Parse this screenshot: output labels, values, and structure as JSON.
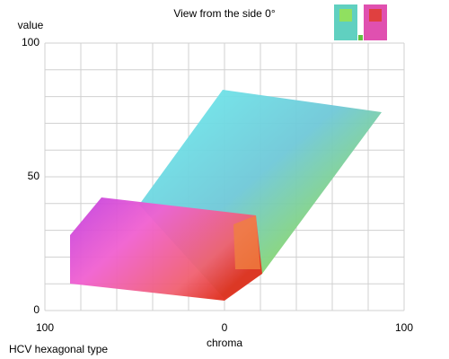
{
  "chart_data": {
    "type": "scatter",
    "title": "View from the side 0°",
    "y_label": "value",
    "x_label": "chroma",
    "footnote": "HCV hexagonal type",
    "xlim": [
      -100,
      100
    ],
    "xticks": [
      {
        "value": -100,
        "label": "100"
      },
      0,
      100
    ],
    "ylim": [
      0,
      100
    ],
    "yticks": [
      0,
      50,
      100
    ],
    "x_minor_ticks": [
      -80,
      -60,
      -40,
      -20,
      20,
      40,
      60,
      80
    ],
    "y_minor_ticks": [
      10,
      20,
      30,
      40,
      60,
      70,
      80,
      90
    ],
    "grid": true
  }
}
